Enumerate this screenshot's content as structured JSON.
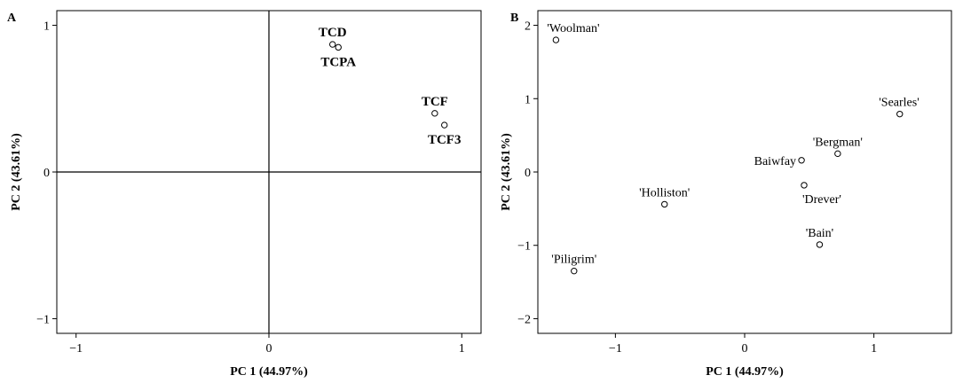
{
  "chart_data": [
    {
      "type": "scatter",
      "panel_label": "A",
      "xlabel": "PC 1 (44.97%)",
      "ylabel": "PC 2 (43.61%)",
      "xlim": [
        -1.1,
        1.1
      ],
      "ylim": [
        -1.1,
        1.1
      ],
      "xticks": [
        -1,
        0,
        1
      ],
      "yticks": [
        -1,
        0,
        1
      ],
      "reference_lines": {
        "x": 0,
        "y": 0
      },
      "points": [
        {
          "label": "TCD",
          "x": 0.33,
          "y": 0.87,
          "label_pos": "above"
        },
        {
          "label": "TCPA",
          "x": 0.36,
          "y": 0.85,
          "label_pos": "below"
        },
        {
          "label": "TCF",
          "x": 0.86,
          "y": 0.4,
          "label_pos": "above"
        },
        {
          "label": "TCF3",
          "x": 0.91,
          "y": 0.32,
          "label_pos": "below"
        }
      ]
    },
    {
      "type": "scatter",
      "panel_label": "B",
      "xlabel": "PC 1 (44.97%)",
      "ylabel": "PC 2 (43.61%)",
      "xlim": [
        -1.6,
        1.6
      ],
      "ylim": [
        -2.2,
        2.2
      ],
      "xticks": [
        -1,
        0,
        1
      ],
      "yticks": [
        -2,
        -1,
        0,
        1,
        2
      ],
      "points": [
        {
          "label": "'Woolman'",
          "x": -1.46,
          "y": 1.8,
          "label_pos": "above-right"
        },
        {
          "label": "'Searles'",
          "x": 1.2,
          "y": 0.79,
          "label_pos": "above-left"
        },
        {
          "label": "'Bergman'",
          "x": 0.72,
          "y": 0.25,
          "label_pos": "above"
        },
        {
          "label": "Baiwfay",
          "x": 0.44,
          "y": 0.16,
          "label_pos": "left"
        },
        {
          "label": "'Drever'",
          "x": 0.46,
          "y": -0.18,
          "label_pos": "below-right"
        },
        {
          "label": "'Holliston'",
          "x": -0.62,
          "y": -0.44,
          "label_pos": "above"
        },
        {
          "label": "'Bain'",
          "x": 0.58,
          "y": -0.99,
          "label_pos": "above"
        },
        {
          "label": "'Piligrim'",
          "x": -1.32,
          "y": -1.35,
          "label_pos": "above"
        }
      ]
    }
  ]
}
